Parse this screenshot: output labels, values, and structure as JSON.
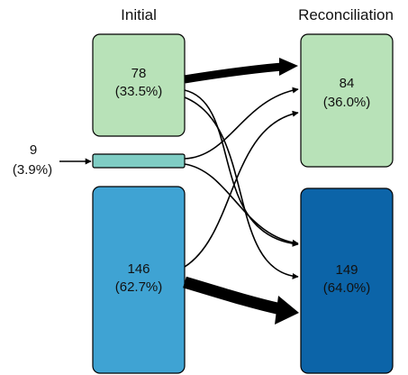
{
  "columns": {
    "initial": "Initial",
    "reconciliation": "Reconciliation"
  },
  "nodes": {
    "initial_top": {
      "count": "78",
      "percent": "(33.5%)",
      "color": "#b8e2b8"
    },
    "initial_small": {
      "count": "9",
      "percent": "(3.9%)",
      "color": "#7fcdc4"
    },
    "initial_bottom": {
      "count": "146",
      "percent": "(62.7%)",
      "color": "#3fa3d3"
    },
    "recon_top": {
      "count": "84",
      "percent": "(36.0%)",
      "color": "#b8e2b8"
    },
    "recon_bottom": {
      "count": "149",
      "percent": "(64.0%)",
      "color": "#0c64a8"
    }
  },
  "colors": {
    "stroke": "#000000"
  }
}
